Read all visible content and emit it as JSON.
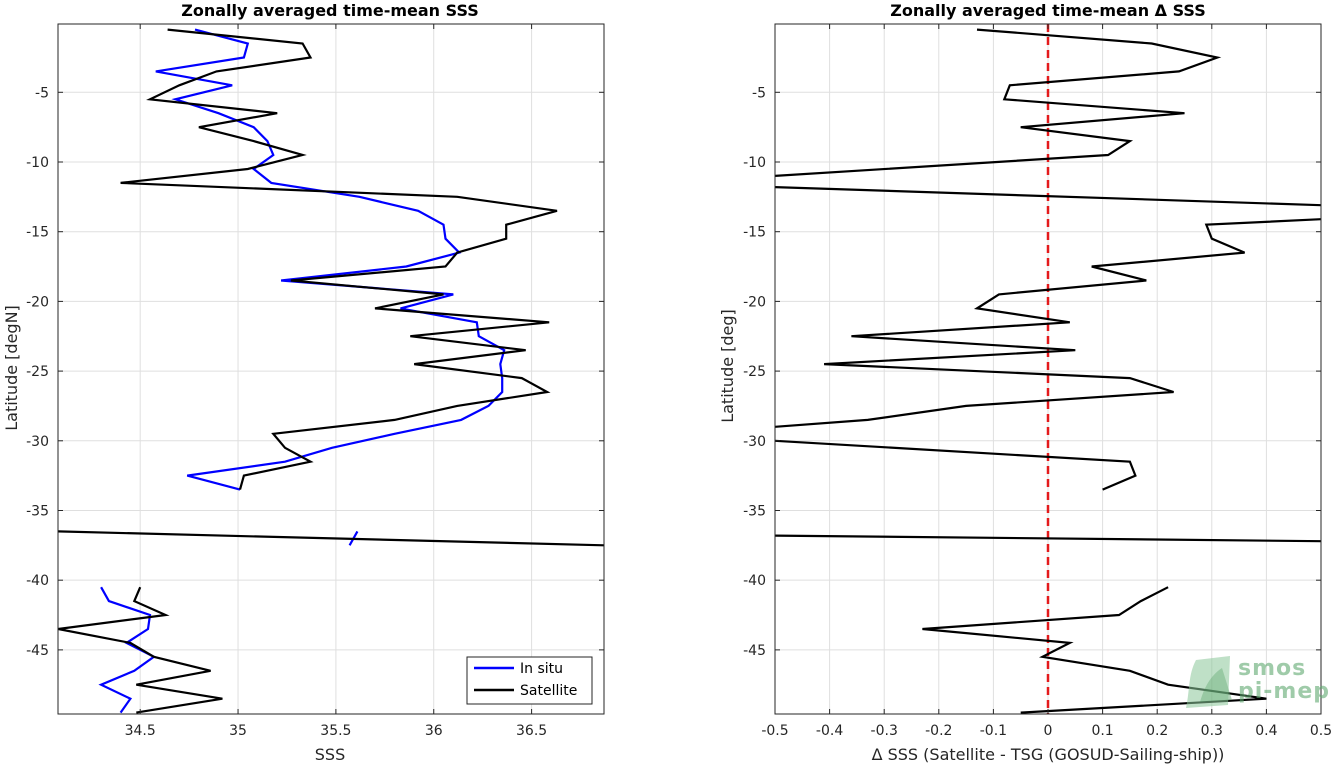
{
  "chart_data": [
    {
      "type": "line",
      "title": "Zonally averaged time-mean SSS",
      "xlabel": "SSS",
      "ylabel": "Latitude [degN]",
      "xlim": [
        34.08,
        36.87
      ],
      "ylim": [
        -49.6,
        -0.1
      ],
      "x_ticks": [
        34.5,
        35,
        35.5,
        36,
        36.5
      ],
      "x_tick_labels": [
        "34.5",
        "35",
        "35.5",
        "36",
        "36.5"
      ],
      "y_ticks": [
        -5,
        -10,
        -15,
        -20,
        -25,
        -30,
        -35,
        -40,
        -45
      ],
      "y_tick_labels": [
        "-5",
        "-10",
        "-15",
        "-20",
        "-25",
        "-30",
        "-35",
        "-40",
        "-45"
      ],
      "grid": true,
      "legend": {
        "location": "bottom-right",
        "entries": [
          "In situ",
          "Satellite"
        ]
      },
      "series": [
        {
          "name": "In situ",
          "color": "#0000ff",
          "segments": [
            [
              {
                "x": 34.78,
                "y": -0.5
              },
              {
                "x": 35.05,
                "y": -1.5
              },
              {
                "x": 35.03,
                "y": -2.5
              },
              {
                "x": 34.58,
                "y": -3.5
              },
              {
                "x": 34.97,
                "y": -4.5
              },
              {
                "x": 34.68,
                "y": -5.5
              },
              {
                "x": 34.9,
                "y": -6.5
              },
              {
                "x": 35.08,
                "y": -7.5
              },
              {
                "x": 35.15,
                "y": -8.5
              },
              {
                "x": 35.18,
                "y": -9.5
              },
              {
                "x": 35.08,
                "y": -10.5
              },
              {
                "x": 35.17,
                "y": -11.5
              },
              {
                "x": 35.62,
                "y": -12.5
              },
              {
                "x": 35.92,
                "y": -13.5
              },
              {
                "x": 36.05,
                "y": -14.5
              },
              {
                "x": 36.06,
                "y": -15.5
              },
              {
                "x": 36.13,
                "y": -16.5
              },
              {
                "x": 35.86,
                "y": -17.5
              },
              {
                "x": 35.22,
                "y": -18.5
              },
              {
                "x": 36.1,
                "y": -19.5
              },
              {
                "x": 35.83,
                "y": -20.5
              },
              {
                "x": 36.22,
                "y": -21.5
              },
              {
                "x": 36.23,
                "y": -22.5
              },
              {
                "x": 36.36,
                "y": -23.5
              },
              {
                "x": 36.34,
                "y": -24.5
              },
              {
                "x": 36.35,
                "y": -25.5
              },
              {
                "x": 36.35,
                "y": -26.5
              },
              {
                "x": 36.28,
                "y": -27.5
              },
              {
                "x": 36.14,
                "y": -28.5
              },
              {
                "x": 35.8,
                "y": -29.5
              },
              {
                "x": 35.48,
                "y": -30.5
              },
              {
                "x": 35.24,
                "y": -31.5
              },
              {
                "x": 34.74,
                "y": -32.5
              },
              {
                "x": 35.01,
                "y": -33.5
              }
            ],
            [
              {
                "x": 35.57,
                "y": -37.5
              },
              {
                "x": 35.61,
                "y": -36.5
              }
            ],
            [
              {
                "x": 34.3,
                "y": -40.5
              },
              {
                "x": 34.34,
                "y": -41.5
              },
              {
                "x": 34.55,
                "y": -42.5
              },
              {
                "x": 34.54,
                "y": -43.5
              },
              {
                "x": 34.43,
                "y": -44.5
              },
              {
                "x": 34.57,
                "y": -45.5
              },
              {
                "x": 34.47,
                "y": -46.5
              },
              {
                "x": 34.3,
                "y": -47.5
              },
              {
                "x": 34.45,
                "y": -48.5
              },
              {
                "x": 34.4,
                "y": -49.5
              }
            ]
          ]
        },
        {
          "name": "Satellite",
          "color": "#000000",
          "segments": [
            [
              {
                "x": 34.64,
                "y": -0.5
              },
              {
                "x": 35.33,
                "y": -1.5
              },
              {
                "x": 35.37,
                "y": -2.5
              },
              {
                "x": 34.89,
                "y": -3.5
              },
              {
                "x": 34.7,
                "y": -4.5
              },
              {
                "x": 34.55,
                "y": -5.5
              },
              {
                "x": 35.2,
                "y": -6.5
              },
              {
                "x": 34.8,
                "y": -7.5
              },
              {
                "x": 35.08,
                "y": -8.5
              },
              {
                "x": 35.33,
                "y": -9.5
              },
              {
                "x": 35.05,
                "y": -10.5
              },
              {
                "x": 34.4,
                "y": -11.5
              },
              {
                "x": 36.12,
                "y": -12.5
              },
              {
                "x": 36.63,
                "y": -13.5
              },
              {
                "x": 36.37,
                "y": -14.5
              },
              {
                "x": 36.37,
                "y": -15.5
              },
              {
                "x": 36.12,
                "y": -16.5
              },
              {
                "x": 36.06,
                "y": -17.5
              },
              {
                "x": 35.27,
                "y": -18.5
              },
              {
                "x": 36.05,
                "y": -19.5
              },
              {
                "x": 35.7,
                "y": -20.5
              },
              {
                "x": 36.59,
                "y": -21.5
              },
              {
                "x": 35.88,
                "y": -22.5
              },
              {
                "x": 36.47,
                "y": -23.5
              },
              {
                "x": 35.9,
                "y": -24.5
              },
              {
                "x": 36.45,
                "y": -25.5
              },
              {
                "x": 36.58,
                "y": -26.5
              },
              {
                "x": 36.12,
                "y": -27.5
              },
              {
                "x": 35.8,
                "y": -28.5
              },
              {
                "x": 35.18,
                "y": -29.5
              },
              {
                "x": 35.24,
                "y": -30.5
              },
              {
                "x": 35.37,
                "y": -31.5
              },
              {
                "x": 35.03,
                "y": -32.5
              },
              {
                "x": 35.01,
                "y": -33.5
              }
            ],
            [
              {
                "x": 34.08,
                "y": -36.5
              },
              {
                "x": 36.87,
                "y": -37.5
              }
            ],
            [
              {
                "x": 34.5,
                "y": -40.5
              },
              {
                "x": 34.47,
                "y": -41.5
              },
              {
                "x": 34.63,
                "y": -42.5
              },
              {
                "x": 34.08,
                "y": -43.5
              },
              {
                "x": 34.45,
                "y": -44.5
              },
              {
                "x": 34.57,
                "y": -45.5
              },
              {
                "x": 34.86,
                "y": -46.5
              },
              {
                "x": 34.48,
                "y": -47.5
              },
              {
                "x": 34.92,
                "y": -48.5
              },
              {
                "x": 34.48,
                "y": -49.5
              }
            ]
          ]
        }
      ]
    },
    {
      "type": "line",
      "title": "Zonally averaged time-mean Δ SSS",
      "xlabel": "Δ SSS (Satellite - TSG (GOSUD-Sailing-ship))",
      "ylabel": "Latitude [deg]",
      "xlim": [
        -0.5,
        0.5
      ],
      "ylim": [
        -49.6,
        -0.1
      ],
      "x_ticks": [
        -0.5,
        -0.4,
        -0.3,
        -0.2,
        -0.1,
        0,
        0.1,
        0.2,
        0.3,
        0.4,
        0.5
      ],
      "x_tick_labels": [
        "-0.5",
        "-0.4",
        "-0.3",
        "-0.2",
        "-0.1",
        "0",
        "0.1",
        "0.2",
        "0.3",
        "0.4",
        "0.5"
      ],
      "y_ticks": [
        -5,
        -10,
        -15,
        -20,
        -25,
        -30,
        -35,
        -40,
        -45
      ],
      "y_tick_labels": [
        "-5",
        "-10",
        "-15",
        "-20",
        "-25",
        "-30",
        "-35",
        "-40",
        "-45"
      ],
      "grid": true,
      "reference_line": {
        "x": 0,
        "color": "#e41a1c",
        "style": "dashed"
      },
      "series": [
        {
          "color": "#000000",
          "segments": [
            [
              {
                "x": -0.13,
                "y": -0.5
              },
              {
                "x": 0.19,
                "y": -1.5
              },
              {
                "x": 0.31,
                "y": -2.5
              },
              {
                "x": 0.24,
                "y": -3.5
              },
              {
                "x": -0.07,
                "y": -4.5
              },
              {
                "x": -0.08,
                "y": -5.5
              },
              {
                "x": 0.25,
                "y": -6.5
              },
              {
                "x": -0.05,
                "y": -7.5
              },
              {
                "x": 0.15,
                "y": -8.5
              },
              {
                "x": 0.11,
                "y": -9.5
              },
              {
                "x": -0.5,
                "y": -11.0
              }
            ],
            [
              {
                "x": -0.5,
                "y": -11.8
              },
              {
                "x": 0.5,
                "y": -13.1
              }
            ],
            [
              {
                "x": 0.5,
                "y": -14.1
              },
              {
                "x": 0.29,
                "y": -14.5
              },
              {
                "x": 0.3,
                "y": -15.5
              },
              {
                "x": 0.36,
                "y": -16.5
              },
              {
                "x": 0.08,
                "y": -17.5
              },
              {
                "x": 0.18,
                "y": -18.5
              },
              {
                "x": -0.09,
                "y": -19.5
              },
              {
                "x": -0.13,
                "y": -20.5
              },
              {
                "x": 0.04,
                "y": -21.5
              },
              {
                "x": -0.36,
                "y": -22.5
              },
              {
                "x": 0.05,
                "y": -23.5
              },
              {
                "x": -0.41,
                "y": -24.5
              },
              {
                "x": 0.15,
                "y": -25.5
              },
              {
                "x": 0.23,
                "y": -26.5
              },
              {
                "x": -0.15,
                "y": -27.5
              },
              {
                "x": -0.33,
                "y": -28.5
              },
              {
                "x": -0.5,
                "y": -29.0
              }
            ],
            [
              {
                "x": -0.5,
                "y": -30.0
              },
              {
                "x": 0.15,
                "y": -31.5
              },
              {
                "x": 0.16,
                "y": -32.5
              },
              {
                "x": 0.1,
                "y": -33.5
              }
            ],
            [
              {
                "x": -0.5,
                "y": -36.8
              },
              {
                "x": 0.5,
                "y": -37.2
              }
            ],
            [
              {
                "x": 0.22,
                "y": -40.5
              },
              {
                "x": 0.17,
                "y": -41.5
              },
              {
                "x": 0.13,
                "y": -42.5
              },
              {
                "x": -0.23,
                "y": -43.5
              },
              {
                "x": 0.04,
                "y": -44.5
              },
              {
                "x": -0.01,
                "y": -45.5
              },
              {
                "x": 0.15,
                "y": -46.5
              },
              {
                "x": 0.22,
                "y": -47.5
              },
              {
                "x": 0.4,
                "y": -48.5
              },
              {
                "x": -0.05,
                "y": -49.5
              }
            ]
          ]
        }
      ]
    }
  ],
  "watermark": {
    "line1": "smos",
    "line2": "pi-mep",
    "color": "#5fa86f"
  }
}
